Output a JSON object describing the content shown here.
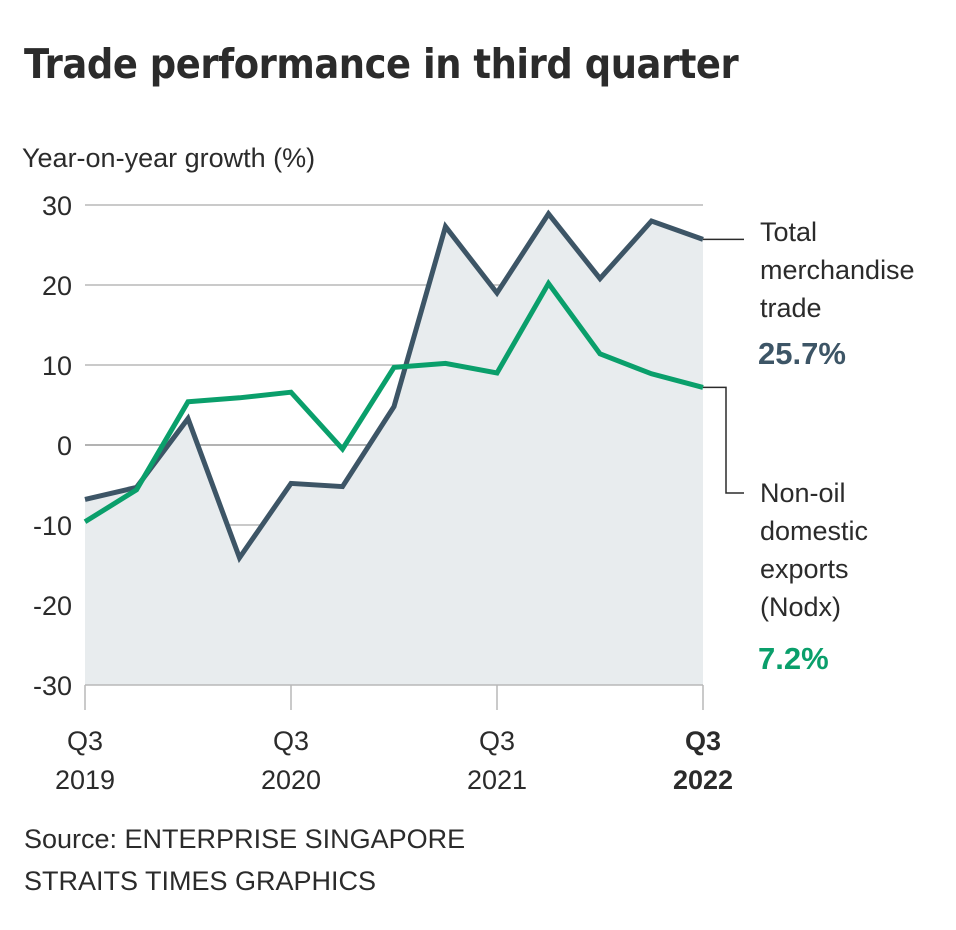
{
  "chart_data": {
    "type": "area",
    "title": "Trade performance in third quarter",
    "ylabel": "Year-on-year growth (%)",
    "xlabel": "",
    "ylim": [
      -30,
      30
    ],
    "yticks": [
      "30",
      "20",
      "10",
      "0",
      "-10",
      "-20",
      "-30"
    ],
    "ytick_values": [
      30,
      20,
      10,
      0,
      -10,
      -20,
      -30
    ],
    "x": [
      "Q3 2019",
      "Q4 2019",
      "Q1 2020",
      "Q2 2020",
      "Q3 2020",
      "Q4 2020",
      "Q1 2021",
      "Q2 2021",
      "Q3 2021",
      "Q4 2021",
      "Q1 2022",
      "Q2 2022",
      "Q3 2022"
    ],
    "xticks": [
      {
        "index": 0,
        "line1": "Q3",
        "line2": "2019",
        "bold": false
      },
      {
        "index": 4,
        "line1": "Q3",
        "line2": "2020",
        "bold": false
      },
      {
        "index": 8,
        "line1": "Q3",
        "line2": "2021",
        "bold": false
      },
      {
        "index": 12,
        "line1": "Q3",
        "line2": "2022",
        "bold": true
      }
    ],
    "grid": true,
    "series": [
      {
        "name": "Total merchandise trade",
        "label_lines": [
          "Total",
          "merchandise",
          "trade"
        ],
        "latest_label": "25.7%",
        "color": "#3d5566",
        "filled": true,
        "fill_color": "#e8ecee",
        "values": [
          -6.8,
          -5.3,
          3.3,
          -14.1,
          -4.8,
          -5.2,
          4.8,
          27.3,
          19.0,
          28.9,
          20.8,
          28.0,
          25.7
        ]
      },
      {
        "name": "Non-oil domestic exports (Nodx)",
        "label_lines": [
          "Non-oil",
          "domestic",
          "exports",
          "(Nodx)"
        ],
        "latest_label": "7.2%",
        "color": "#0a9f6b",
        "filled": false,
        "values": [
          -9.6,
          -5.6,
          5.4,
          5.9,
          6.6,
          -0.5,
          9.7,
          10.2,
          9.0,
          20.2,
          11.4,
          8.9,
          7.2
        ]
      }
    ],
    "legend": "right-annotations"
  },
  "footer": {
    "source": "Source: ENTERPRISE SINGAPORE",
    "credit": "STRAITS TIMES GRAPHICS"
  }
}
